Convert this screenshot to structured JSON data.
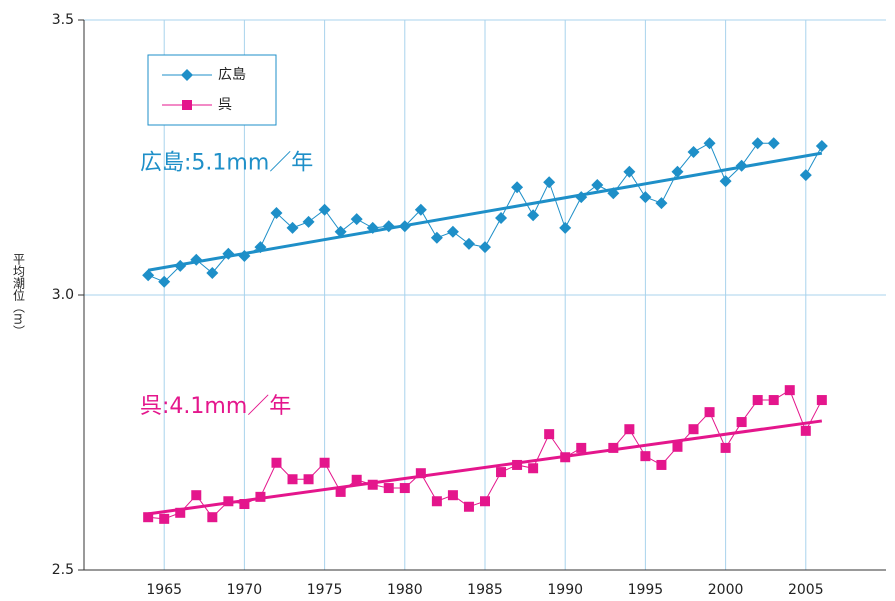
{
  "chart_data": {
    "type": "line",
    "y_label": "平均潮位（m）",
    "x": [
      1964,
      1965,
      1966,
      1967,
      1968,
      1969,
      1970,
      1971,
      1972,
      1973,
      1974,
      1975,
      1976,
      1977,
      1978,
      1979,
      1980,
      1981,
      1982,
      1983,
      1984,
      1985,
      1986,
      1987,
      1988,
      1989,
      1990,
      1991,
      1992,
      1993,
      1994,
      1995,
      1996,
      1997,
      1998,
      1999,
      2000,
      2001,
      2002,
      2003,
      2004,
      2005,
      2006
    ],
    "series": [
      {
        "name": "広島",
        "color": "#1e8fc8",
        "marker": "diamond",
        "values": [
          3.036,
          3.024,
          3.053,
          3.064,
          3.04,
          3.075,
          3.071,
          3.087,
          3.149,
          3.122,
          3.133,
          3.155,
          3.115,
          3.138,
          3.122,
          3.125,
          3.125,
          3.155,
          3.104,
          3.115,
          3.093,
          3.087,
          3.14,
          3.196,
          3.145,
          3.205,
          3.122,
          3.178,
          3.2,
          3.185,
          3.224,
          3.178,
          3.167,
          3.224,
          3.26,
          3.276,
          3.207,
          3.235,
          3.276,
          3.276,
          null,
          3.218,
          3.271
        ]
      },
      {
        "name": "呉",
        "color": "#e4168c",
        "marker": "square",
        "values": [
          2.596,
          2.593,
          2.604,
          2.636,
          2.596,
          2.625,
          2.62,
          2.633,
          2.695,
          2.665,
          2.665,
          2.695,
          2.642,
          2.664,
          2.655,
          2.649,
          2.649,
          2.676,
          2.625,
          2.636,
          2.615,
          2.625,
          2.678,
          2.691,
          2.685,
          2.747,
          2.705,
          2.722,
          null,
          2.722,
          2.756,
          2.707,
          2.691,
          2.724,
          2.756,
          2.787,
          2.722,
          2.769,
          2.809,
          2.809,
          2.827,
          2.753,
          2.809
        ]
      }
    ],
    "trends": [
      {
        "x": [
          1964,
          2006
        ],
        "values": [
          3.045,
          3.258
        ],
        "color": "#1e8fc8",
        "annotation": "広島:5.1mm／年"
      },
      {
        "x": [
          1964,
          2006
        ],
        "values": [
          2.602,
          2.771
        ],
        "color": "#e4168c",
        "annotation": "呉:4.1mm／年"
      }
    ],
    "xlim": [
      1960,
      2010
    ],
    "xticks": [
      1965,
      1970,
      1975,
      1980,
      1985,
      1990,
      1995,
      2000,
      2005
    ],
    "ylim": [
      2.5,
      3.5
    ],
    "yticks": [
      {
        "value": 2.5,
        "label": "2.5"
      },
      {
        "value": 3,
        "label": "3.0"
      },
      {
        "value": 3.5,
        "label": "3.5"
      }
    ],
    "grid": true,
    "legend": "upper left"
  }
}
